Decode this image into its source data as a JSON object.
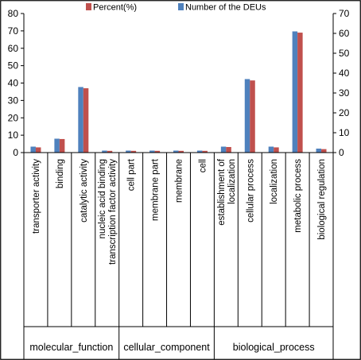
{
  "chart_data": {
    "type": "bar",
    "title": "",
    "xlabel": "",
    "ylabel": "",
    "categories": [
      "transporter activity",
      "binding",
      "catalytic activity",
      "nucleic acid binding transcription factor activity",
      "cell part",
      "membrane part",
      "membrane",
      "cell",
      "establishment of localization",
      "cellular process",
      "localization",
      "metabolic process",
      "biological regulation"
    ],
    "category_lines": [
      [
        "transporter activity"
      ],
      [
        "binding"
      ],
      [
        "catalytic activity"
      ],
      [
        "nucleic acid binding",
        "transcription factor activity"
      ],
      [
        "cell part"
      ],
      [
        "membrane part"
      ],
      [
        "membrane"
      ],
      [
        "cell"
      ],
      [
        "establishment of",
        "localization"
      ],
      [
        "cellular process"
      ],
      [
        "localization"
      ],
      [
        "metabolic process"
      ],
      [
        "biological regulation"
      ]
    ],
    "groups": [
      {
        "name": "molecular_function",
        "start": 0,
        "end": 3
      },
      {
        "name": "cellular_component",
        "start": 4,
        "end": 7
      },
      {
        "name": "biological_process",
        "start": 8,
        "end": 12
      }
    ],
    "series": [
      {
        "name": "Number of the DEUs",
        "axis": "right",
        "color": "#4f81bd",
        "values": [
          3,
          7,
          33,
          1,
          1,
          1,
          1,
          1,
          3,
          37,
          3,
          61,
          2
        ]
      },
      {
        "name": "Percent(%)",
        "axis": "left",
        "color": "#c0504d",
        "values": [
          3,
          7.8,
          37,
          1,
          1,
          1,
          1,
          1,
          3.2,
          41.5,
          3,
          69,
          2
        ]
      }
    ],
    "legend_order": [
      "Percent(%)",
      "Number of the DEUs"
    ],
    "legend_position": "top",
    "ylim_left": [
      0,
      80
    ],
    "yticks_left": [
      "0",
      "10",
      "20",
      "30",
      "40",
      "50",
      "60",
      "70",
      "80"
    ],
    "ylim_right": [
      0,
      70
    ],
    "yticks_right": [
      "0",
      "10",
      "20",
      "30",
      "40",
      "50",
      "60",
      "70"
    ],
    "grid": false
  }
}
